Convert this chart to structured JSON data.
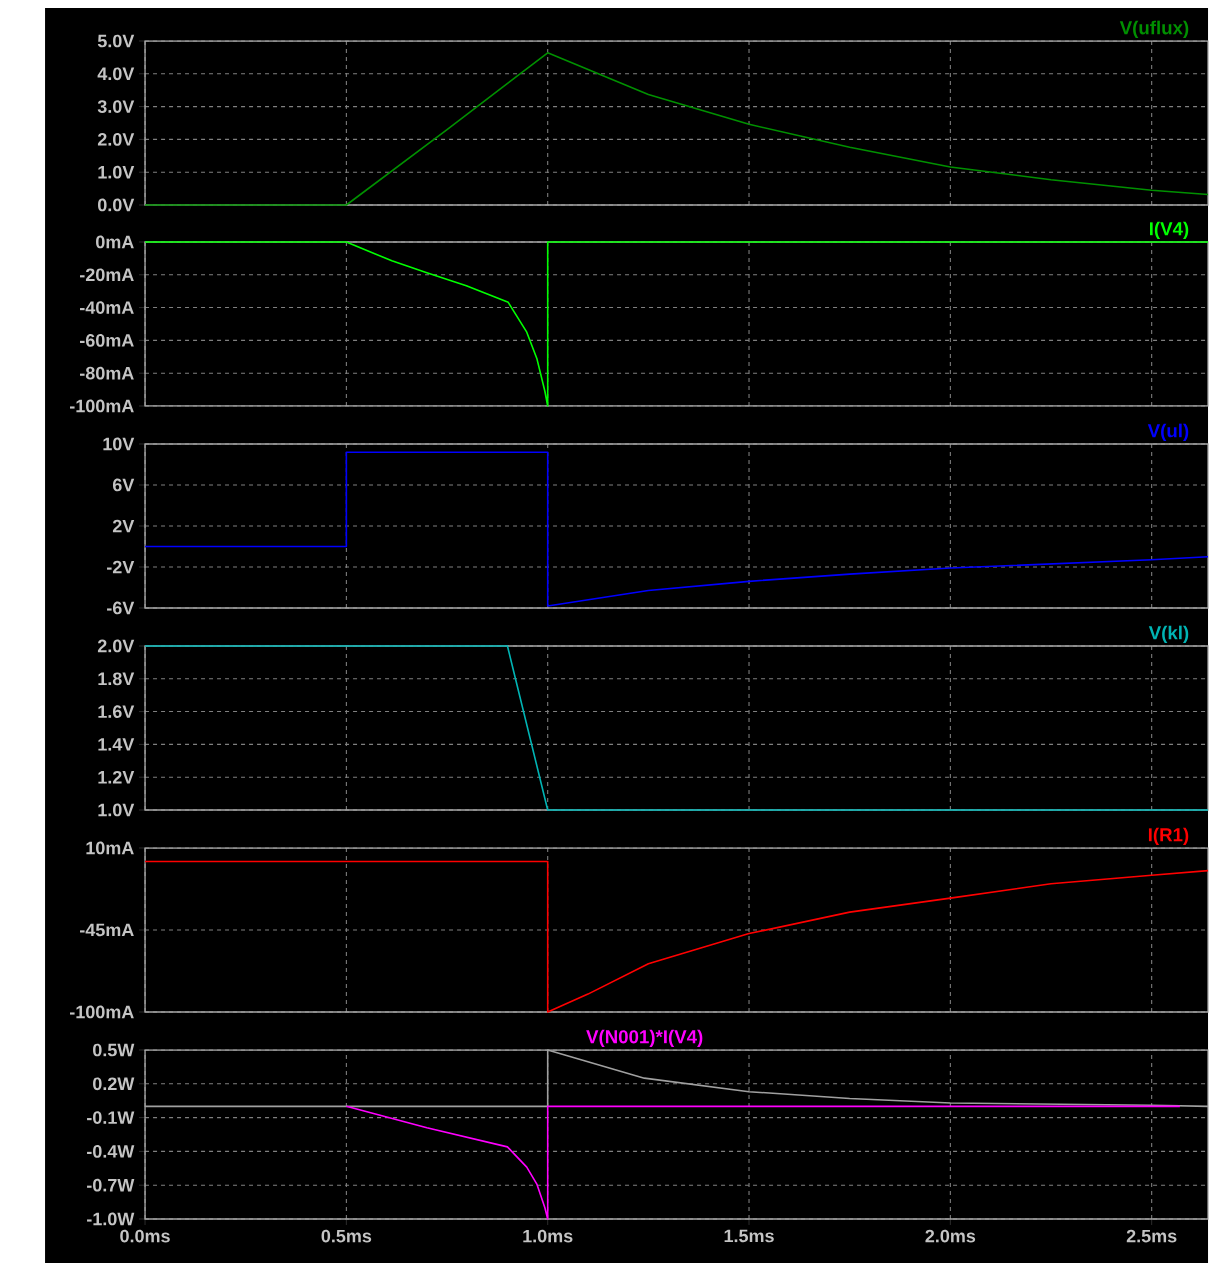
{
  "chart_data": [
    {
      "type": "line",
      "xlim": [
        0,
        2.64
      ],
      "xticks": [
        {
          "value": 0,
          "label": null
        },
        {
          "value": 0.5,
          "label": null
        },
        {
          "value": 1.0,
          "label": null
        },
        {
          "value": 1.5,
          "label": null
        },
        {
          "value": 2.0,
          "label": null
        },
        {
          "value": 2.5,
          "label": null
        }
      ],
      "ylim": [
        0,
        5
      ],
      "yticks": [
        {
          "value": 0,
          "label": "0.0V"
        },
        {
          "value": 1,
          "label": "1.0V"
        },
        {
          "value": 2,
          "label": "2.0V"
        },
        {
          "value": 3,
          "label": "3.0V"
        },
        {
          "value": 4,
          "label": "4.0V"
        },
        {
          "value": 5,
          "label": "5.0V"
        }
      ],
      "grid": true,
      "legend": "top right",
      "tick_labels": "y",
      "series": [
        {
          "name": "V(uflux)",
          "color": "#009000",
          "x": [
            0,
            0.5,
            0.75,
            1.0,
            1.25,
            1.5,
            1.75,
            2.0,
            2.25,
            2.5,
            2.64
          ],
          "values": [
            0,
            0,
            2.3,
            4.64,
            3.37,
            2.46,
            1.76,
            1.16,
            0.77,
            0.45,
            0.32
          ]
        }
      ]
    },
    {
      "type": "line",
      "xlim": [
        0,
        2.64
      ],
      "xticks": [
        {
          "value": 0,
          "label": null
        },
        {
          "value": 0.5,
          "label": null
        },
        {
          "value": 1.0,
          "label": null
        },
        {
          "value": 1.5,
          "label": null
        },
        {
          "value": 2.0,
          "label": null
        },
        {
          "value": 2.5,
          "label": null
        }
      ],
      "ylim": [
        -100,
        0
      ],
      "yticks": [
        {
          "value": -100,
          "label": "-100mA"
        },
        {
          "value": -80,
          "label": "-80mA"
        },
        {
          "value": -60,
          "label": "-60mA"
        },
        {
          "value": -40,
          "label": "-40mA"
        },
        {
          "value": -20,
          "label": "-20mA"
        },
        {
          "value": 0,
          "label": "0mA"
        }
      ],
      "grid": true,
      "legend": "top right",
      "tick_labels": "y",
      "series": [
        {
          "name": "I(V4)",
          "color": "#00ff00",
          "x": [
            0,
            0.5,
            0.613,
            0.698,
            0.798,
            0.902,
            0.948,
            0.973,
            0.993,
            1.0,
            1.0,
            2.64
          ],
          "values": [
            0,
            0,
            -11.5,
            -18.6,
            -26.7,
            -36.8,
            -55,
            -71,
            -91,
            -100,
            0,
            0
          ]
        }
      ]
    },
    {
      "type": "line",
      "xlim": [
        0,
        2.64
      ],
      "xticks": [
        {
          "value": 0,
          "label": null
        },
        {
          "value": 0.5,
          "label": null
        },
        {
          "value": 1.0,
          "label": null
        },
        {
          "value": 1.5,
          "label": null
        },
        {
          "value": 2.0,
          "label": null
        },
        {
          "value": 2.5,
          "label": null
        }
      ],
      "ylim": [
        -6,
        10
      ],
      "yticks": [
        {
          "value": -6,
          "label": "-6V"
        },
        {
          "value": -2,
          "label": "-2V"
        },
        {
          "value": 2,
          "label": "2V"
        },
        {
          "value": 6,
          "label": "6V"
        },
        {
          "value": 10,
          "label": "10V"
        }
      ],
      "grid": true,
      "legend": "top right",
      "tick_labels": "y",
      "series": [
        {
          "name": "V(ul)",
          "color": "#0000ff",
          "x": [
            0,
            0.5,
            0.5,
            1.0,
            1.0,
            1.25,
            1.5,
            1.75,
            2.0,
            2.25,
            2.5,
            2.64
          ],
          "values": [
            0,
            0,
            9.2,
            9.2,
            -5.8,
            -4.3,
            -3.4,
            -2.7,
            -2.1,
            -1.7,
            -1.3,
            -1.0
          ]
        }
      ]
    },
    {
      "type": "line",
      "xlim": [
        0,
        2.64
      ],
      "xticks": [
        {
          "value": 0,
          "label": null
        },
        {
          "value": 0.5,
          "label": null
        },
        {
          "value": 1.0,
          "label": null
        },
        {
          "value": 1.5,
          "label": null
        },
        {
          "value": 2.0,
          "label": null
        },
        {
          "value": 2.5,
          "label": null
        }
      ],
      "ylim": [
        1,
        2
      ],
      "yticks": [
        {
          "value": 1.0,
          "label": "1.0V"
        },
        {
          "value": 1.2,
          "label": "1.2V"
        },
        {
          "value": 1.4,
          "label": "1.4V"
        },
        {
          "value": 1.6,
          "label": "1.6V"
        },
        {
          "value": 1.8,
          "label": "1.8V"
        },
        {
          "value": 2.0,
          "label": "2.0V"
        }
      ],
      "grid": true,
      "legend": "top right",
      "tick_labels": "y",
      "series": [
        {
          "name": "V(kl)",
          "color": "#00b4b4",
          "x": [
            0,
            0.9,
            1.0,
            2.64
          ],
          "values": [
            2,
            2,
            1,
            1
          ]
        }
      ]
    },
    {
      "type": "line",
      "xlim": [
        0,
        2.64
      ],
      "xticks": [
        {
          "value": 0,
          "label": null
        },
        {
          "value": 0.5,
          "label": null
        },
        {
          "value": 1.0,
          "label": null
        },
        {
          "value": 1.5,
          "label": null
        },
        {
          "value": 2.0,
          "label": null
        },
        {
          "value": 2.5,
          "label": null
        }
      ],
      "ylim": [
        -100,
        10
      ],
      "yticks": [
        {
          "value": -100,
          "label": "-100mA"
        },
        {
          "value": -45,
          "label": "-45mA"
        },
        {
          "value": 10,
          "label": "10mA"
        }
      ],
      "grid": true,
      "legend": "top right",
      "tick_labels": "y",
      "series": [
        {
          "name": "I(R1)",
          "color": "#ff0000",
          "x": [
            0,
            1.0,
            1.0,
            1.1,
            1.25,
            1.5,
            1.75,
            2.0,
            2.25,
            2.5,
            2.64
          ],
          "values": [
            1,
            1,
            -100,
            -88,
            -67.6,
            -47.4,
            -33,
            -23.6,
            -14,
            -8.3,
            -5.2
          ]
        }
      ]
    },
    {
      "type": "line",
      "xlim": [
        0,
        2.64
      ],
      "xticks": [
        {
          "value": 0,
          "label": "0.0ms"
        },
        {
          "value": 0.5,
          "label": "0.5ms"
        },
        {
          "value": 1.0,
          "label": "1.0ms"
        },
        {
          "value": 1.5,
          "label": "1.5ms"
        },
        {
          "value": 2.0,
          "label": "2.0ms"
        },
        {
          "value": 2.5,
          "label": "2.5ms"
        }
      ],
      "ylim": [
        -1,
        0.5
      ],
      "yticks": [
        {
          "value": -1.0,
          "label": "-1.0W"
        },
        {
          "value": -0.7,
          "label": "-0.7W"
        },
        {
          "value": -0.4,
          "label": "-0.4W"
        },
        {
          "value": -0.1,
          "label": "-0.1W"
        },
        {
          "value": 0.2,
          "label": "0.2W"
        },
        {
          "value": 0.5,
          "label": "0.5W"
        }
      ],
      "grid": true,
      "legend": "top",
      "series": [
        {
          "color": "#a0a0a0",
          "x": [
            0,
            1.0,
            1.0,
            1.24,
            1.5,
            1.75,
            2.0,
            2.5,
            2.64
          ],
          "values": [
            0,
            0,
            0.5,
            0.25,
            0.13,
            0.07,
            0.03,
            0.01,
            0
          ]
        },
        {
          "name": "V(N001)*I(V4)",
          "color": "#ff00ff",
          "x": [
            0.5,
            0.7,
            0.9,
            0.948,
            0.973,
            0.993,
            1.0,
            1.0,
            2.57
          ],
          "values": [
            0,
            -0.19,
            -0.36,
            -0.54,
            -0.69,
            -0.9,
            -1.0,
            0,
            0
          ]
        }
      ]
    }
  ]
}
